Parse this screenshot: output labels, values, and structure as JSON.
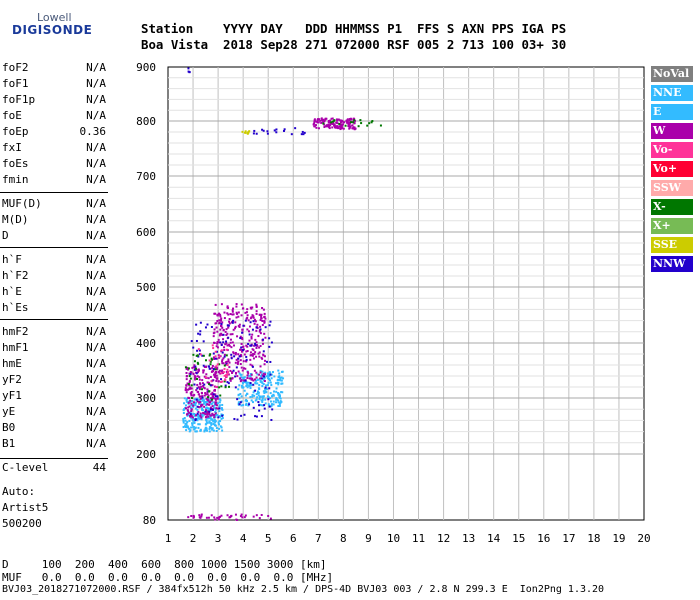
{
  "logo": {
    "line1": "Lowell",
    "line2": "DIGISONDE"
  },
  "header": {
    "row1": "Station    YYYY DAY   DDD HHMMSS P1  FFS S AXN PPS IGA PS",
    "row2": "Boa Vista  2018 Sep28 271 072000 RSF 005 2 713 100 03+ 30"
  },
  "params": {
    "group1": [
      {
        "label": "foF2",
        "value": "N/A"
      },
      {
        "label": "foF1",
        "value": "N/A"
      },
      {
        "label": "foF1p",
        "value": "N/A"
      },
      {
        "label": "foE",
        "value": "N/A"
      },
      {
        "label": "foEp",
        "value": "0.36"
      },
      {
        "label": "fxI",
        "value": "N/A"
      },
      {
        "label": "foEs",
        "value": "N/A"
      },
      {
        "label": "fmin",
        "value": "N/A"
      }
    ],
    "group2": [
      {
        "label": "MUF(D)",
        "value": "N/A"
      },
      {
        "label": "M(D)",
        "value": "N/A"
      },
      {
        "label": "D",
        "value": "N/A"
      }
    ],
    "group3": [
      {
        "label": "h`F",
        "value": "N/A"
      },
      {
        "label": "h`F2",
        "value": "N/A"
      },
      {
        "label": "h`E",
        "value": "N/A"
      },
      {
        "label": "h`Es",
        "value": "N/A"
      }
    ],
    "group4": [
      {
        "label": "hmF2",
        "value": "N/A"
      },
      {
        "label": "hmF1",
        "value": "N/A"
      },
      {
        "label": "hmE",
        "value": "N/A"
      },
      {
        "label": "yF2",
        "value": "N/A"
      },
      {
        "label": "yF1",
        "value": "N/A"
      },
      {
        "label": "yE",
        "value": "N/A"
      },
      {
        "label": "B0",
        "value": "N/A"
      },
      {
        "label": "B1",
        "value": "N/A"
      }
    ],
    "clevel": {
      "label": "C-level",
      "value": "44"
    }
  },
  "auto": {
    "line1": "Auto:",
    "line2": "Artist5",
    "line3": "500200"
  },
  "legend": [
    {
      "label": "NoVal",
      "color": "#7f7f7f"
    },
    {
      "label": "NNE",
      "color": "#33bbff"
    },
    {
      "label": "E",
      "color": "#33bbff"
    },
    {
      "label": "W",
      "color": "#aa00aa"
    },
    {
      "label": "Vo-",
      "color": "#ff3399"
    },
    {
      "label": "Vo+",
      "color": "#ff0033"
    },
    {
      "label": "SSW",
      "color": "#ffaaaa"
    },
    {
      "label": "X-",
      "color": "#007700"
    },
    {
      "label": "X+",
      "color": "#77bb55"
    },
    {
      "label": "SSE",
      "color": "#cccc00"
    },
    {
      "label": "NNW",
      "color": "#2200cc"
    }
  ],
  "footer": {
    "row1": "D     100  200  400  600  800 1000 1500 3000 [km]",
    "row2": "MUF   0.0  0.0  0.0  0.0  0.0  0.0  0.0  0.0 [MHz]",
    "row3": "BVJ03_2018271072000.RSF / 384fx512h 50 kHz 2.5 km / DPS-4D BVJ03 003 / 2.8 N 299.3 E  Ion2Png 1.3.20"
  },
  "chart_data": {
    "type": "scatter",
    "title": "",
    "xlabel": "",
    "ylabel": "",
    "xlim": [
      1,
      20
    ],
    "ylim": [
      80,
      900
    ],
    "xticks": [
      1,
      2,
      3,
      4,
      5,
      6,
      7,
      8,
      9,
      10,
      11,
      12,
      13,
      14,
      15,
      16,
      17,
      18,
      19,
      20
    ],
    "yticks": [
      80,
      200,
      300,
      400,
      500,
      600,
      700,
      800,
      900
    ],
    "grid": true,
    "clusters": [
      {
        "series": "E",
        "color": "#33bbff",
        "x": [
          1.6,
          3.2
        ],
        "y": [
          240,
          300
        ],
        "n": 260
      },
      {
        "series": "NNE",
        "color": "#33bbff",
        "x": [
          3.8,
          5.6
        ],
        "y": [
          285,
          350
        ],
        "n": 220
      },
      {
        "series": "W",
        "color": "#aa00aa",
        "x": [
          1.7,
          3.0
        ],
        "y": [
          265,
          360
        ],
        "n": 220
      },
      {
        "series": "W",
        "color": "#aa00aa",
        "x": [
          2.8,
          4.9
        ],
        "y": [
          330,
          470
        ],
        "n": 330
      },
      {
        "series": "NNW",
        "color": "#2200cc",
        "x": [
          1.9,
          5.2
        ],
        "y": [
          260,
          440
        ],
        "n": 140
      },
      {
        "series": "X-",
        "color": "#007700",
        "x": [
          1.7,
          3.6
        ],
        "y": [
          290,
          380
        ],
        "n": 40
      },
      {
        "series": "Vo-",
        "color": "#ff3399",
        "x": [
          2.2,
          3.4
        ],
        "y": [
          320,
          400
        ],
        "n": 30
      },
      {
        "series": "W",
        "color": "#aa00aa",
        "x": [
          6.8,
          8.5
        ],
        "y": [
          785,
          805
        ],
        "n": 140
      },
      {
        "series": "X-",
        "color": "#007700",
        "x": [
          7.0,
          9.5
        ],
        "y": [
          790,
          802
        ],
        "n": 18
      },
      {
        "series": "SSE",
        "color": "#cccc00",
        "x": [
          3.9,
          4.4
        ],
        "y": [
          775,
          782
        ],
        "n": 10
      },
      {
        "series": "NNW",
        "color": "#2200cc",
        "x": [
          4.4,
          6.5
        ],
        "y": [
          776,
          790
        ],
        "n": 18
      },
      {
        "series": "W",
        "color": "#aa00aa",
        "x": [
          1.7,
          5.2
        ],
        "y": [
          80,
          90
        ],
        "n": 40
      },
      {
        "series": "NNW",
        "color": "#2200cc",
        "x": [
          1.8,
          1.9
        ],
        "y": [
          890,
          900
        ],
        "n": 4
      }
    ]
  }
}
